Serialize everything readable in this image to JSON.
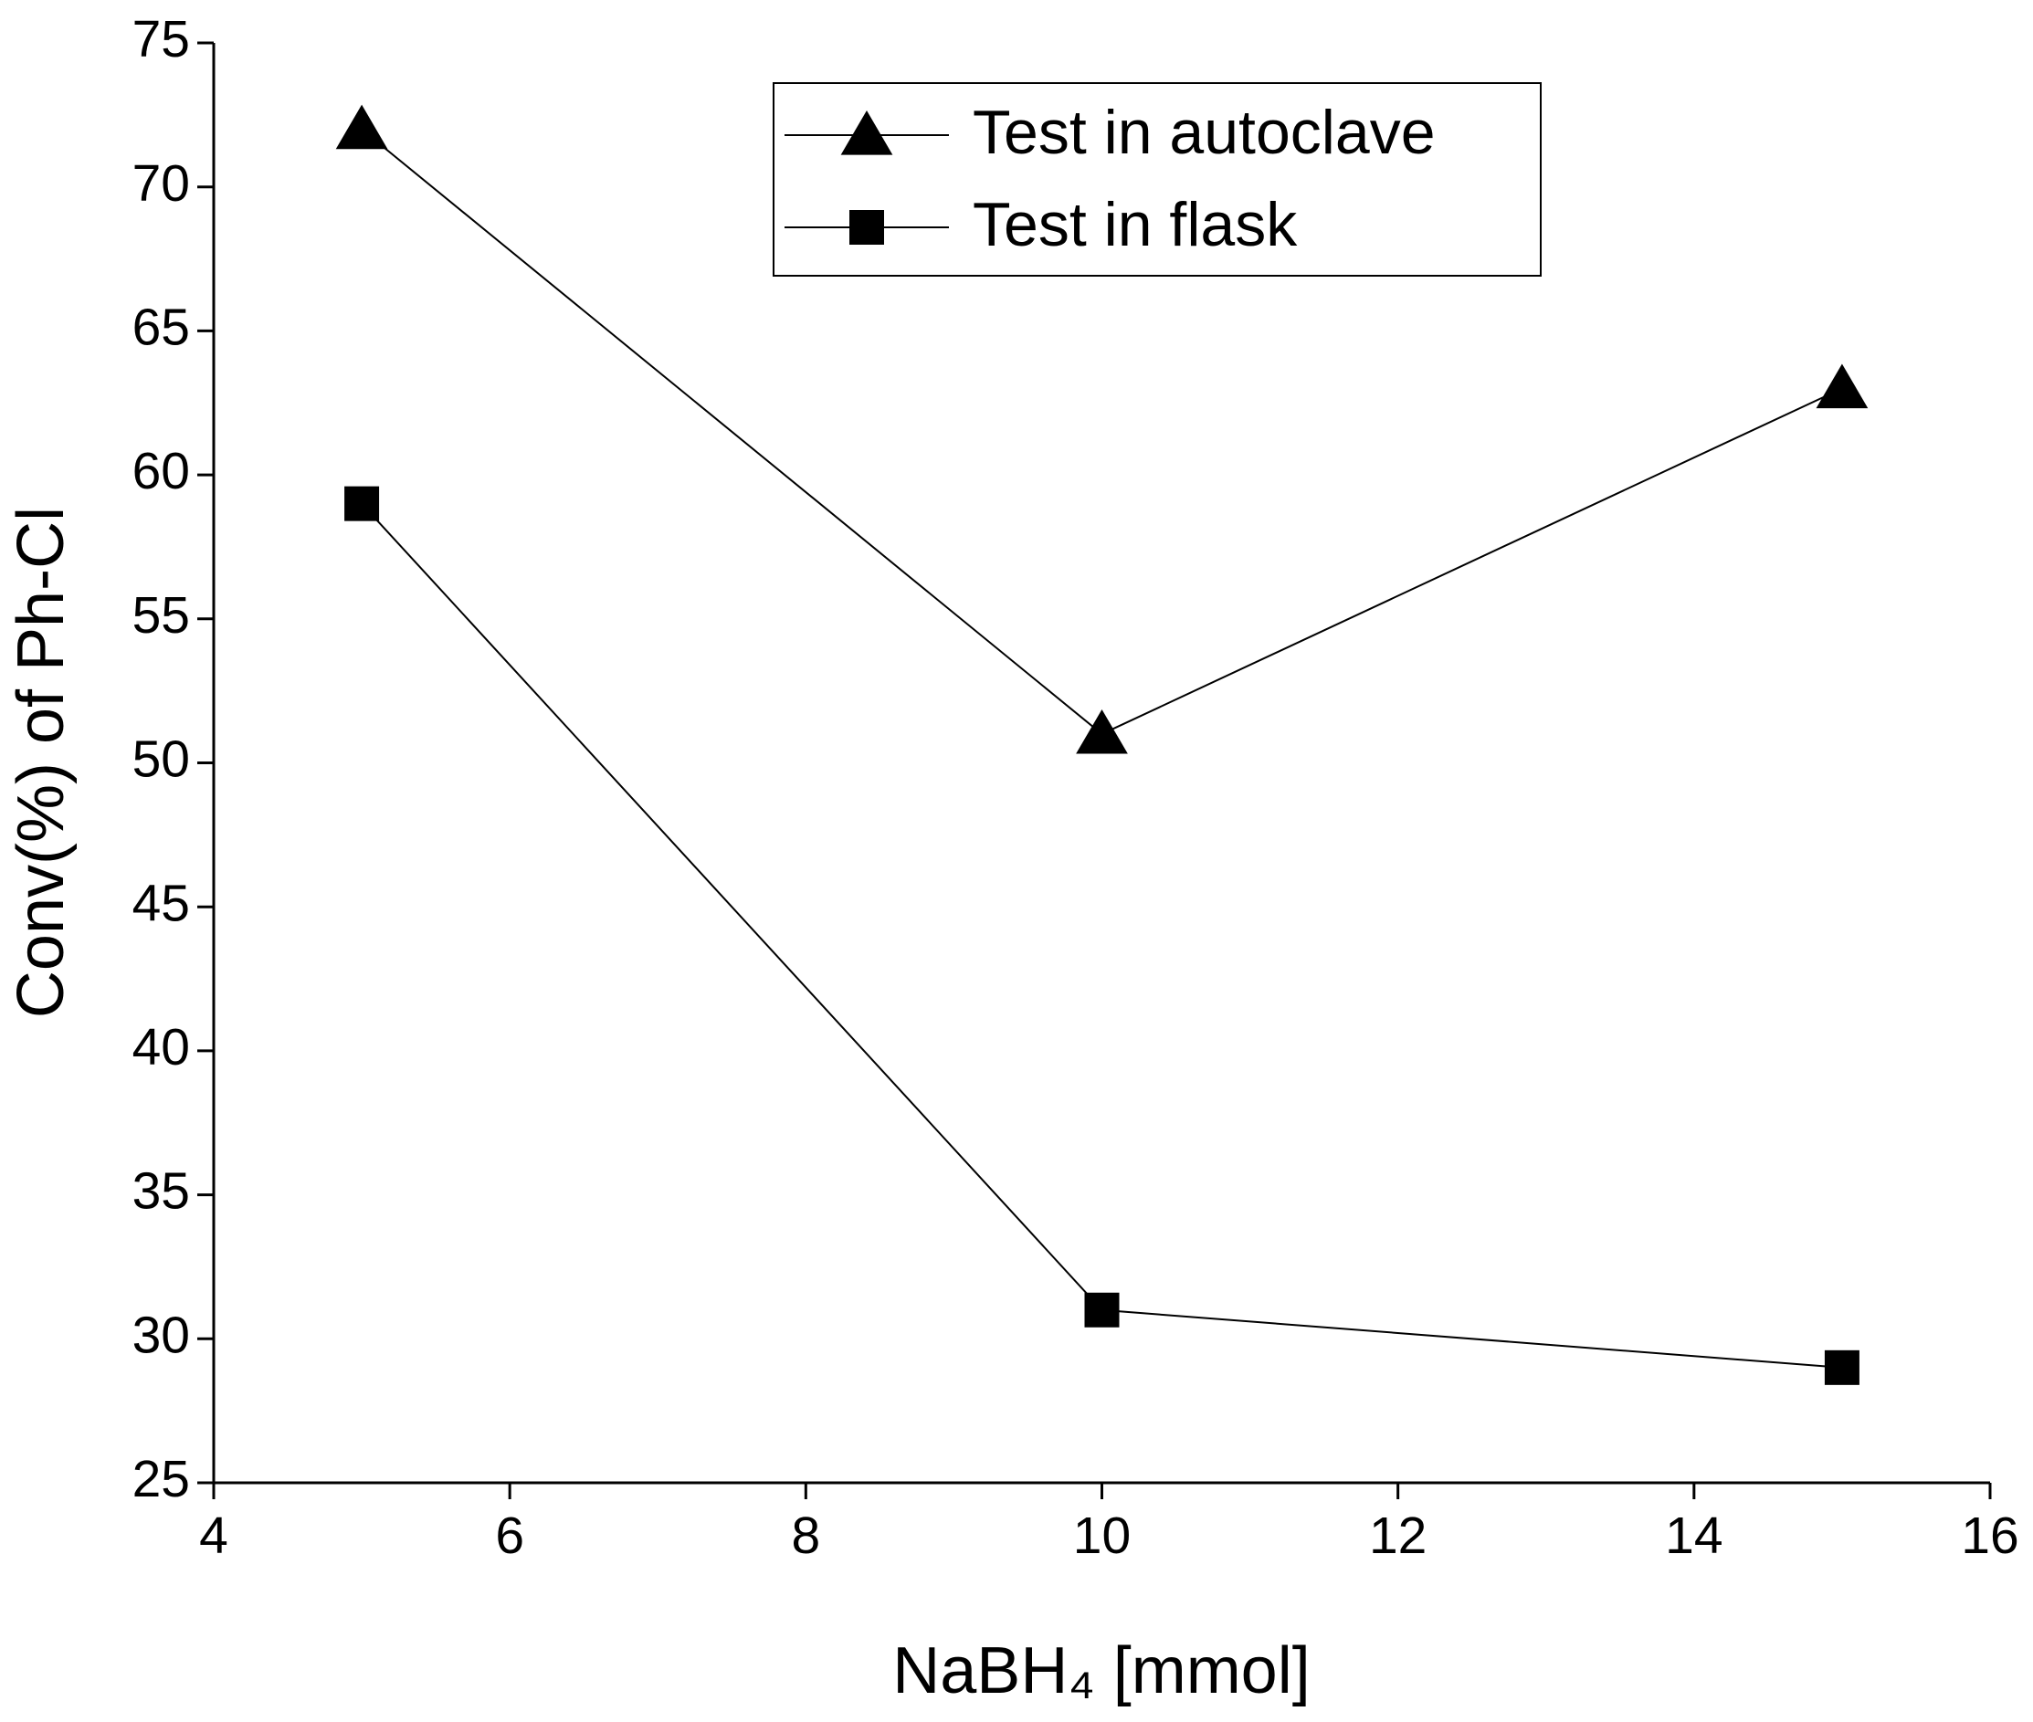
{
  "chart_data": {
    "type": "line",
    "xlabel": "NaBH₄ [mmol]",
    "ylabel": "Conv(%) of Ph-Cl",
    "x": [
      5,
      10,
      15
    ],
    "series": [
      {
        "name": "Test in autoclave",
        "color": "#000000",
        "marker": "triangle",
        "values": [
          72,
          51,
          63
        ]
      },
      {
        "name": "Test in flask",
        "color": "#000000",
        "marker": "square",
        "values": [
          59,
          31,
          29
        ]
      }
    ],
    "xlim": [
      4,
      16
    ],
    "xticks": [
      4,
      6,
      8,
      10,
      12,
      14,
      16
    ],
    "ylim": [
      25,
      75
    ],
    "yticks": [
      25,
      30,
      35,
      40,
      45,
      50,
      55,
      60,
      65,
      70,
      75
    ],
    "grid": false,
    "legend": "top"
  }
}
